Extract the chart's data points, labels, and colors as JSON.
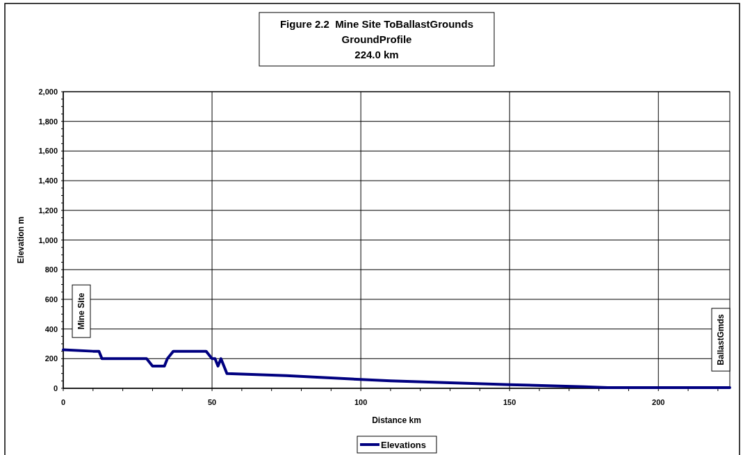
{
  "chart_data": {
    "type": "line",
    "title": "Figure 2.2  Mine Site ToBallastGrounds",
    "subtitle": "GroundProfile\n224.0 km",
    "xlabel": "Distance km",
    "ylabel": "Elevation m",
    "x": [
      0,
      10,
      12,
      13,
      28,
      30,
      34,
      35,
      37,
      48,
      50,
      51,
      52,
      53,
      54,
      55,
      75,
      100,
      110,
      150,
      175,
      183,
      224
    ],
    "series": [
      {
        "name": "Elevations",
        "color": "#000080",
        "values": [
          260,
          250,
          250,
          200,
          200,
          150,
          150,
          200,
          250,
          250,
          200,
          200,
          150,
          200,
          150,
          100,
          85,
          60,
          50,
          25,
          10,
          5,
          5
        ]
      }
    ],
    "xlim": [
      0,
      224
    ],
    "xticks": [
      0,
      50,
      100,
      150,
      200
    ],
    "ylim": [
      0,
      2000
    ],
    "yticks": [
      {
        "value": 0,
        "label": "0"
      },
      {
        "value": 200,
        "label": "200"
      },
      {
        "value": 400,
        "label": "400"
      },
      {
        "value": 600,
        "label": "600"
      },
      {
        "value": 800,
        "label": "800"
      },
      {
        "value": 1000,
        "label": "1,000"
      },
      {
        "value": 1200,
        "label": "1,200"
      },
      {
        "value": 1400,
        "label": "1,400"
      },
      {
        "value": 1600,
        "label": "1,600"
      },
      {
        "value": 1800,
        "label": "1,800"
      },
      {
        "value": 2000,
        "label": "2,000"
      }
    ],
    "annotations": [
      "Mine Site",
      "BallastGmds"
    ],
    "grid": true,
    "legend": "bottom",
    "marker": "none",
    "line_style": "solid"
  }
}
